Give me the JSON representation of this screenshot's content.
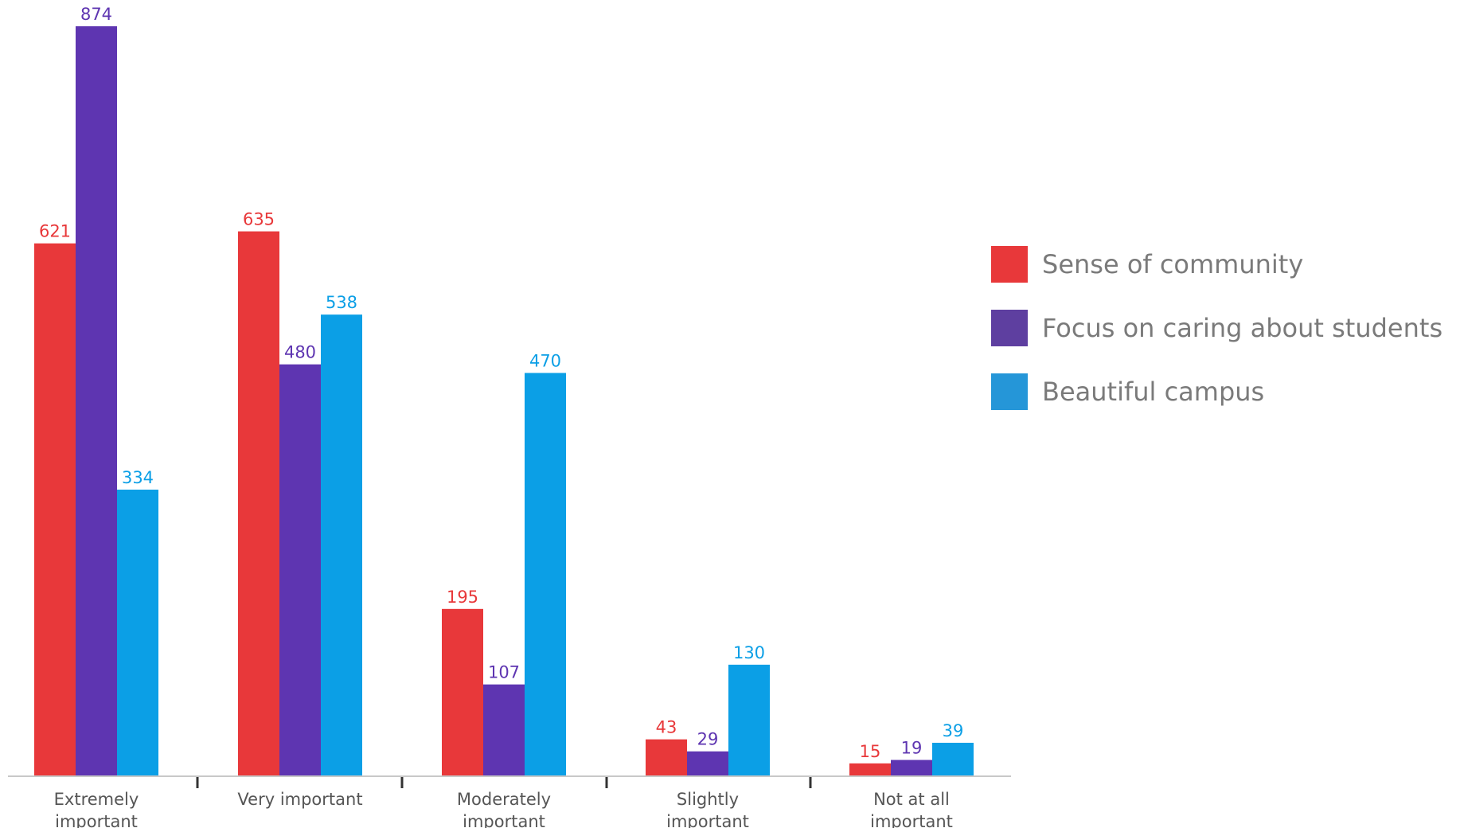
{
  "chart_data": {
    "type": "bar",
    "categories": [
      [
        "Extremely",
        "important"
      ],
      [
        "Very important"
      ],
      [
        "Moderately",
        "important"
      ],
      [
        "Slightly",
        "important"
      ],
      [
        "Not at all",
        "important"
      ]
    ],
    "series": [
      {
        "name": "Sense of community",
        "color": "#e8383a",
        "values": [
          621,
          635,
          195,
          43,
          15
        ]
      },
      {
        "name": "Focus on caring about students",
        "color": "#5e35b1",
        "values": [
          874,
          480,
          107,
          29,
          19
        ]
      },
      {
        "name": "Beautiful campus",
        "color": "#0b9fe6",
        "values": [
          334,
          538,
          470,
          130,
          39
        ]
      }
    ],
    "legend_colors": [
      "#e8383a",
      "#5e3fa0",
      "#2596d8"
    ],
    "ylim": [
      0,
      874
    ],
    "grid": false,
    "legend_position": "right",
    "title": "",
    "xlabel": "",
    "ylabel": ""
  }
}
